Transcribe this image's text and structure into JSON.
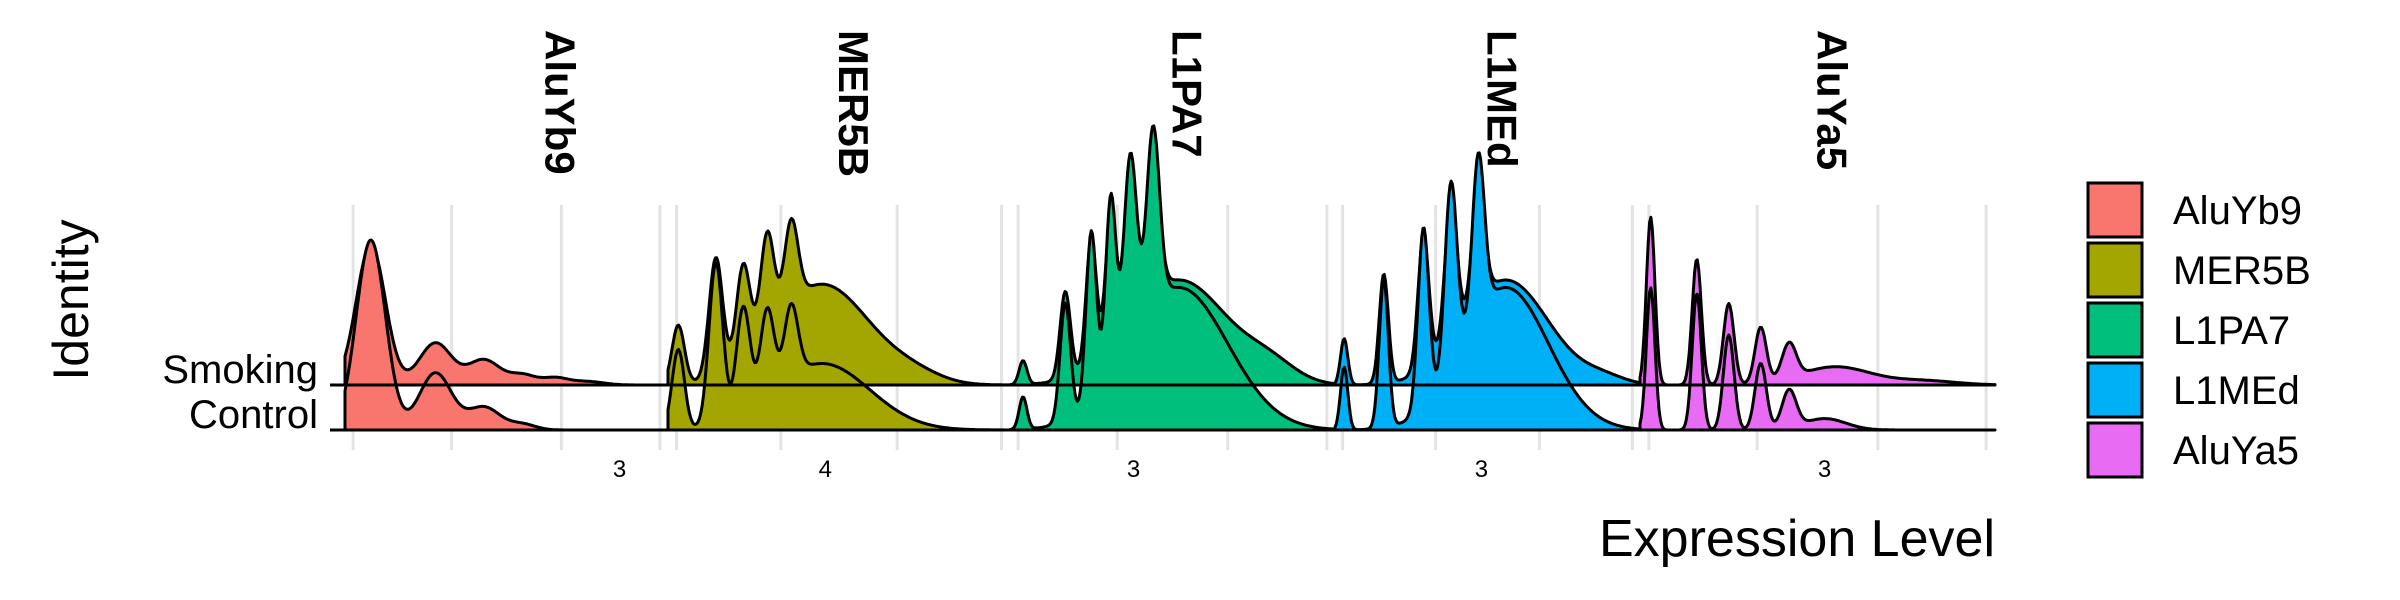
{
  "chart_data": {
    "type": "ridgeline",
    "xlabel": "Expression Level",
    "ylabel": "Identity",
    "rows": [
      "Smoking",
      "Control"
    ],
    "legend": {
      "position": "right"
    },
    "grid": true,
    "panels": [
      {
        "name": "AluYb9",
        "color": "#F8766D",
        "x_ticks": [
          "3"
        ],
        "smoking_peaks": [
          [
            0.08,
            0.045,
            1.0
          ],
          [
            0.28,
            0.05,
            0.3
          ],
          [
            0.43,
            0.05,
            0.18
          ],
          [
            0.55,
            0.04,
            0.07
          ],
          [
            0.65,
            0.04,
            0.05
          ],
          [
            0.75,
            0.05,
            0.025
          ]
        ],
        "control_peaks": [
          [
            0.08,
            0.045,
            1.0
          ],
          [
            0.28,
            0.05,
            0.3
          ],
          [
            0.43,
            0.05,
            0.12
          ],
          [
            0.55,
            0.04,
            0.03
          ]
        ]
      },
      {
        "name": "MER5B",
        "color": "#A3A500",
        "x_ticks": [
          "4"
        ],
        "smoking_peaks": [
          [
            0.03,
            0.018,
            0.42
          ],
          [
            0.14,
            0.02,
            0.85
          ],
          [
            0.22,
            0.02,
            0.68
          ],
          [
            0.29,
            0.02,
            0.72
          ],
          [
            0.36,
            0.02,
            0.6
          ],
          [
            0.45,
            0.14,
            0.72
          ],
          [
            0.72,
            0.08,
            0.06
          ]
        ],
        "control_peaks": [
          [
            0.03,
            0.018,
            0.42
          ],
          [
            0.14,
            0.02,
            0.85
          ],
          [
            0.22,
            0.02,
            0.56
          ],
          [
            0.29,
            0.02,
            0.46
          ],
          [
            0.36,
            0.02,
            0.38
          ],
          [
            0.45,
            0.14,
            0.35
          ]
        ]
      },
      {
        "name": "L1PA7",
        "color": "#00BF7D",
        "x_ticks": [
          "3"
        ],
        "smoking_peaks": [
          [
            0.04,
            0.012,
            0.17
          ],
          [
            0.17,
            0.016,
            0.62
          ],
          [
            0.25,
            0.016,
            0.9
          ],
          [
            0.31,
            0.016,
            0.95
          ],
          [
            0.37,
            0.02,
            1.0
          ],
          [
            0.44,
            0.02,
            0.95
          ],
          [
            0.52,
            0.15,
            0.75
          ],
          [
            0.8,
            0.08,
            0.12
          ]
        ],
        "control_peaks": [
          [
            0.04,
            0.012,
            0.17
          ],
          [
            0.17,
            0.016,
            0.62
          ],
          [
            0.25,
            0.016,
            0.9
          ],
          [
            0.31,
            0.016,
            0.95
          ],
          [
            0.37,
            0.02,
            1.0
          ],
          [
            0.44,
            0.02,
            0.95
          ],
          [
            0.52,
            0.15,
            0.75
          ]
        ]
      },
      {
        "name": "L1MEd",
        "color": "#00B0F6",
        "x_ticks": [
          "3"
        ],
        "smoking_peaks": [
          [
            0.03,
            0.012,
            0.33
          ],
          [
            0.16,
            0.015,
            0.78
          ],
          [
            0.29,
            0.018,
            0.95
          ],
          [
            0.38,
            0.02,
            0.98
          ],
          [
            0.47,
            0.02,
            0.85
          ],
          [
            0.56,
            0.14,
            0.75
          ],
          [
            0.88,
            0.07,
            0.05
          ]
        ],
        "control_peaks": [
          [
            0.03,
            0.012,
            0.33
          ],
          [
            0.16,
            0.015,
            0.78
          ],
          [
            0.29,
            0.018,
            0.95
          ],
          [
            0.38,
            0.02,
            0.98
          ],
          [
            0.47,
            0.02,
            0.85
          ],
          [
            0.56,
            0.14,
            0.75
          ]
        ]
      },
      {
        "name": "AluYa5",
        "color": "#E76BF3",
        "x_ticks": [
          "3"
        ],
        "smoking_peaks": [
          [
            0.03,
            0.012,
            1.2
          ],
          [
            0.16,
            0.013,
            0.9
          ],
          [
            0.25,
            0.015,
            0.58
          ],
          [
            0.34,
            0.016,
            0.4
          ],
          [
            0.42,
            0.02,
            0.25
          ],
          [
            0.55,
            0.1,
            0.13
          ],
          [
            0.8,
            0.09,
            0.03
          ]
        ],
        "control_peaks": [
          [
            0.03,
            0.012,
            0.75
          ],
          [
            0.16,
            0.013,
            0.72
          ],
          [
            0.25,
            0.015,
            0.5
          ],
          [
            0.34,
            0.016,
            0.35
          ],
          [
            0.42,
            0.02,
            0.2
          ],
          [
            0.52,
            0.06,
            0.06
          ]
        ]
      }
    ]
  }
}
